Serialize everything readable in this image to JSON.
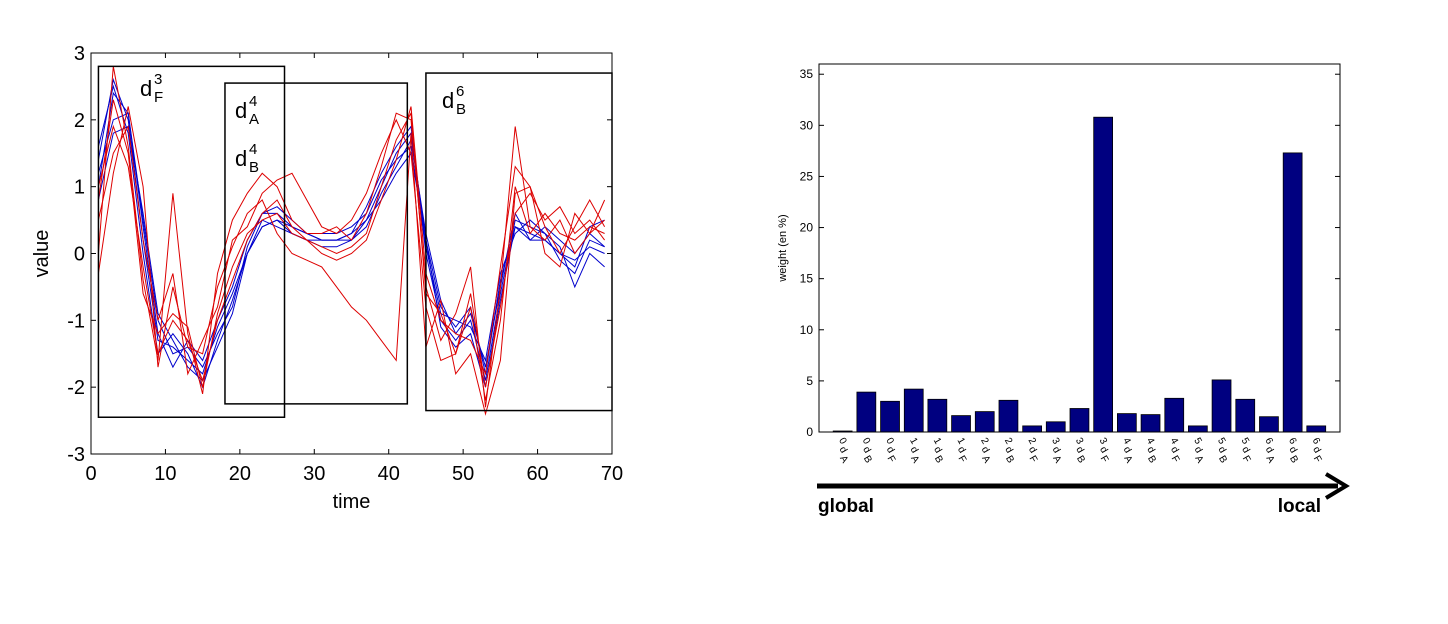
{
  "chart_data": [
    {
      "type": "line",
      "xlabel": "time",
      "ylabel": "value",
      "xlim": [
        0,
        70
      ],
      "ylim": [
        -3,
        3
      ],
      "xticks": [
        0,
        10,
        20,
        30,
        40,
        50,
        60,
        70
      ],
      "yticks": [
        -3,
        -2,
        -1,
        0,
        1,
        2,
        3
      ],
      "grid": false,
      "regions": [
        {
          "name": "d",
          "sub": "F",
          "sup": "3",
          "x": [
            1,
            26
          ],
          "y": [
            -2.45,
            2.8
          ]
        },
        {
          "name": "d",
          "sub": "A",
          "sup": "4",
          "name2": "d",
          "sub2": "B",
          "sup2": "4",
          "x": [
            18,
            42.5
          ],
          "y": [
            -2.25,
            2.55
          ]
        },
        {
          "name": "d",
          "sub": "B",
          "sup": "6",
          "x": [
            45,
            70
          ],
          "y": [
            -2.35,
            2.7
          ]
        }
      ],
      "series": [
        {
          "color": "#0000cc",
          "x": [
            1,
            3,
            5,
            7,
            9,
            11,
            13,
            15,
            17,
            19,
            21,
            23,
            25,
            27,
            29,
            31,
            33,
            35,
            37,
            39,
            41,
            43,
            45,
            47,
            49,
            51,
            53,
            55,
            57,
            59,
            61,
            63,
            65,
            67,
            69
          ],
          "values": [
            1.4,
            2.6,
            2.0,
            0.2,
            -1.3,
            -1.4,
            -1.6,
            -1.8,
            -1.1,
            -0.6,
            0.0,
            0.4,
            0.5,
            0.4,
            0.3,
            0.2,
            0.2,
            0.3,
            0.5,
            1.0,
            1.5,
            1.8,
            0.2,
            -0.8,
            -1.1,
            -0.8,
            -1.8,
            -0.4,
            0.4,
            0.3,
            0.2,
            0.0,
            -0.1,
            0.1,
            0.0
          ]
        },
        {
          "color": "#0000cc",
          "x": [
            1,
            3,
            5,
            7,
            9,
            11,
            13,
            15,
            17,
            19,
            21,
            23,
            25,
            27,
            29,
            31,
            33,
            35,
            37,
            39,
            41,
            43,
            45,
            47,
            49,
            51,
            53,
            55,
            57,
            59,
            61,
            63,
            65,
            67,
            69
          ],
          "values": [
            1.0,
            2.4,
            2.1,
            0.5,
            -1.0,
            -1.5,
            -1.4,
            -1.7,
            -1.2,
            -0.8,
            0.1,
            0.6,
            0.7,
            0.5,
            0.3,
            0.2,
            0.2,
            0.3,
            0.7,
            1.2,
            1.6,
            1.9,
            0.0,
            -1.0,
            -1.3,
            -1.0,
            -1.9,
            -0.6,
            0.5,
            0.4,
            0.3,
            -0.1,
            -0.3,
            0.2,
            0.1
          ]
        },
        {
          "color": "#0000cc",
          "x": [
            1,
            3,
            5,
            7,
            9,
            11,
            13,
            15,
            17,
            19,
            21,
            23,
            25,
            27,
            29,
            31,
            33,
            35,
            37,
            39,
            41,
            43,
            45,
            47,
            49,
            51,
            53,
            55,
            57,
            59,
            61,
            63,
            65,
            67,
            69
          ],
          "values": [
            1.6,
            2.5,
            1.8,
            0.0,
            -1.5,
            -1.2,
            -1.5,
            -2.0,
            -1.3,
            -0.7,
            0.0,
            0.5,
            0.4,
            0.3,
            0.2,
            0.1,
            0.1,
            0.2,
            0.4,
            0.9,
            1.3,
            1.7,
            0.3,
            -0.7,
            -1.2,
            -0.9,
            -1.7,
            -0.5,
            0.6,
            0.2,
            0.4,
            0.2,
            0.0,
            0.3,
            0.1
          ]
        },
        {
          "color": "#0000cc",
          "x": [
            1,
            3,
            5,
            7,
            9,
            11,
            13,
            15,
            17,
            19,
            21,
            23,
            25,
            27,
            29,
            31,
            33,
            35,
            37,
            39,
            41,
            43,
            45,
            47,
            49,
            51,
            53,
            55,
            57,
            59,
            61,
            63,
            65,
            67,
            69
          ],
          "values": [
            1.2,
            2.0,
            2.1,
            0.4,
            -1.2,
            -1.7,
            -1.3,
            -1.6,
            -1.0,
            -0.5,
            0.2,
            0.6,
            0.6,
            0.4,
            0.3,
            0.3,
            0.3,
            0.4,
            0.6,
            1.1,
            1.4,
            1.6,
            0.1,
            -0.9,
            -1.0,
            -1.1,
            -1.6,
            -0.3,
            0.3,
            0.5,
            0.3,
            0.1,
            -0.5,
            0.0,
            -0.2
          ]
        },
        {
          "color": "#0000cc",
          "x": [
            1,
            3,
            5,
            7,
            9,
            11,
            13,
            15,
            17,
            19,
            21,
            23,
            25,
            27,
            29,
            31,
            33,
            35,
            37,
            39,
            41,
            43,
            45,
            47,
            49,
            51,
            53,
            55,
            57,
            59,
            61,
            63,
            65,
            67,
            69
          ],
          "values": [
            0.8,
            1.8,
            1.9,
            0.6,
            -0.9,
            -1.3,
            -1.7,
            -1.9,
            -1.4,
            -0.9,
            0.0,
            0.4,
            0.5,
            0.3,
            0.2,
            0.2,
            0.2,
            0.2,
            0.5,
            0.8,
            1.2,
            1.5,
            0.2,
            -1.1,
            -1.4,
            -1.2,
            -2.0,
            -0.7,
            0.4,
            0.2,
            0.2,
            0.0,
            -0.2,
            0.4,
            0.5
          ]
        },
        {
          "color": "#dd0000",
          "x": [
            1,
            3,
            5,
            7,
            9,
            11,
            13,
            15,
            17,
            19,
            21,
            23,
            25,
            27,
            29,
            31,
            33,
            35,
            37,
            39,
            41,
            43,
            45,
            47,
            49,
            51,
            53,
            55,
            57,
            59,
            61,
            63,
            65,
            67,
            69
          ],
          "values": [
            0.0,
            2.8,
            1.6,
            -0.4,
            -1.6,
            0.9,
            -1.2,
            -2.1,
            -0.3,
            0.5,
            0.9,
            1.2,
            1.0,
            0.5,
            0.3,
            0.3,
            0.4,
            0.2,
            0.6,
            1.3,
            2.1,
            2.0,
            -0.5,
            -1.3,
            -0.9,
            -0.2,
            -2.3,
            -0.5,
            1.9,
            0.4,
            0.2,
            0.5,
            0.0,
            0.3,
            0.8
          ]
        },
        {
          "color": "#dd0000",
          "x": [
            1,
            3,
            5,
            7,
            9,
            11,
            13,
            15,
            17,
            19,
            21,
            23,
            25,
            27,
            29,
            31,
            33,
            35,
            37,
            39,
            41,
            43,
            45,
            47,
            49,
            51,
            53,
            55,
            57,
            59,
            61,
            63,
            65,
            67,
            69
          ],
          "values": [
            -0.3,
            1.2,
            2.2,
            1.0,
            -1.7,
            -0.5,
            -1.4,
            -1.5,
            -0.5,
            0.1,
            0.6,
            0.8,
            0.3,
            0.0,
            -0.1,
            -0.2,
            -0.5,
            -0.8,
            -1.0,
            -1.3,
            -1.6,
            1.8,
            -1.4,
            -0.7,
            -1.8,
            -1.5,
            -2.4,
            -1.6,
            0.9,
            1.0,
            0.0,
            -0.2,
            0.6,
            0.3,
            0.5
          ]
        },
        {
          "color": "#dd0000",
          "x": [
            1,
            3,
            5,
            7,
            9,
            11,
            13,
            15,
            17,
            19,
            21,
            23,
            25,
            27,
            29,
            31,
            33,
            35,
            37,
            39,
            41,
            43,
            45,
            47,
            49,
            51,
            53,
            55,
            57,
            59,
            61,
            63,
            65,
            67,
            69
          ],
          "values": [
            0.5,
            1.5,
            1.9,
            0.2,
            -1.0,
            -0.3,
            -1.8,
            -1.3,
            -0.8,
            0.2,
            0.4,
            0.9,
            1.1,
            1.2,
            0.8,
            0.4,
            0.3,
            0.5,
            0.9,
            1.5,
            2.0,
            1.5,
            -0.8,
            -1.6,
            -1.5,
            -0.6,
            -2.0,
            -0.8,
            0.6,
            0.9,
            0.5,
            0.7,
            0.3,
            0.5,
            0.2
          ]
        },
        {
          "color": "#dd0000",
          "x": [
            1,
            3,
            5,
            7,
            9,
            11,
            13,
            15,
            17,
            19,
            21,
            23,
            25,
            27,
            29,
            31,
            33,
            35,
            37,
            39,
            41,
            43,
            45,
            47,
            49,
            51,
            53,
            55,
            57,
            59,
            61,
            63,
            65,
            67,
            69
          ],
          "values": [
            0.8,
            2.3,
            1.5,
            -0.6,
            -1.2,
            -0.9,
            -1.1,
            -2.0,
            -0.9,
            -0.2,
            0.3,
            0.5,
            0.6,
            0.3,
            0.2,
            0.0,
            -0.1,
            0.0,
            0.2,
            0.8,
            1.4,
            2.2,
            -0.3,
            -1.0,
            -1.2,
            -1.3,
            -1.8,
            -0.2,
            1.3,
            1.0,
            0.4,
            0.0,
            0.4,
            0.8,
            0.4
          ]
        },
        {
          "color": "#dd0000",
          "x": [
            1,
            3,
            5,
            7,
            9,
            11,
            13,
            15,
            17,
            19,
            21,
            23,
            25,
            27,
            29,
            31,
            33,
            35,
            37,
            39,
            41,
            43,
            45,
            47,
            49,
            51,
            53,
            55,
            57,
            59,
            61,
            63,
            65,
            67,
            69
          ],
          "values": [
            1.0,
            1.9,
            1.3,
            -0.2,
            -1.5,
            -1.0,
            -1.3,
            -1.9,
            -1.0,
            -0.4,
            0.2,
            0.6,
            0.8,
            0.4,
            0.2,
            0.1,
            0.0,
            0.1,
            0.3,
            1.0,
            1.7,
            2.1,
            -0.6,
            -0.9,
            -1.5,
            -0.8,
            -2.2,
            -1.0,
            1.0,
            0.3,
            0.6,
            0.3,
            0.2,
            0.4,
            0.3
          ]
        }
      ]
    },
    {
      "type": "bar",
      "ylabel": "weight (en %)",
      "ylim": [
        0,
        36
      ],
      "yticks": [
        0,
        5,
        10,
        15,
        20,
        25,
        30,
        35
      ],
      "grid": false,
      "bar_color": "#000080",
      "categories": [
        {
          "base": "d",
          "sub": "A",
          "sup": "0"
        },
        {
          "base": "d",
          "sub": "B",
          "sup": "0"
        },
        {
          "base": "d",
          "sub": "F",
          "sup": "0"
        },
        {
          "base": "d",
          "sub": "A",
          "sup": "1"
        },
        {
          "base": "d",
          "sub": "B",
          "sup": "1"
        },
        {
          "base": "d",
          "sub": "F",
          "sup": "1"
        },
        {
          "base": "d",
          "sub": "A",
          "sup": "2"
        },
        {
          "base": "d",
          "sub": "B",
          "sup": "2"
        },
        {
          "base": "d",
          "sub": "F",
          "sup": "2"
        },
        {
          "base": "d",
          "sub": "A",
          "sup": "3"
        },
        {
          "base": "d",
          "sub": "B",
          "sup": "3"
        },
        {
          "base": "d",
          "sub": "F",
          "sup": "3"
        },
        {
          "base": "d",
          "sub": "A",
          "sup": "4"
        },
        {
          "base": "d",
          "sub": "B",
          "sup": "4"
        },
        {
          "base": "d",
          "sub": "F",
          "sup": "4"
        },
        {
          "base": "d",
          "sub": "A",
          "sup": "5"
        },
        {
          "base": "d",
          "sub": "B",
          "sup": "5"
        },
        {
          "base": "d",
          "sub": "F",
          "sup": "5"
        },
        {
          "base": "d",
          "sub": "A",
          "sup": "6"
        },
        {
          "base": "d",
          "sub": "B",
          "sup": "6"
        },
        {
          "base": "d",
          "sub": "F",
          "sup": "6"
        }
      ],
      "values": [
        0.1,
        3.9,
        3.0,
        4.2,
        3.2,
        1.6,
        2.0,
        3.1,
        0.6,
        1.0,
        2.3,
        30.8,
        1.8,
        1.7,
        3.3,
        0.6,
        5.1,
        3.2,
        1.5,
        27.3,
        0.6
      ],
      "arrow": {
        "left_label": "global",
        "right_label": "local"
      }
    }
  ]
}
